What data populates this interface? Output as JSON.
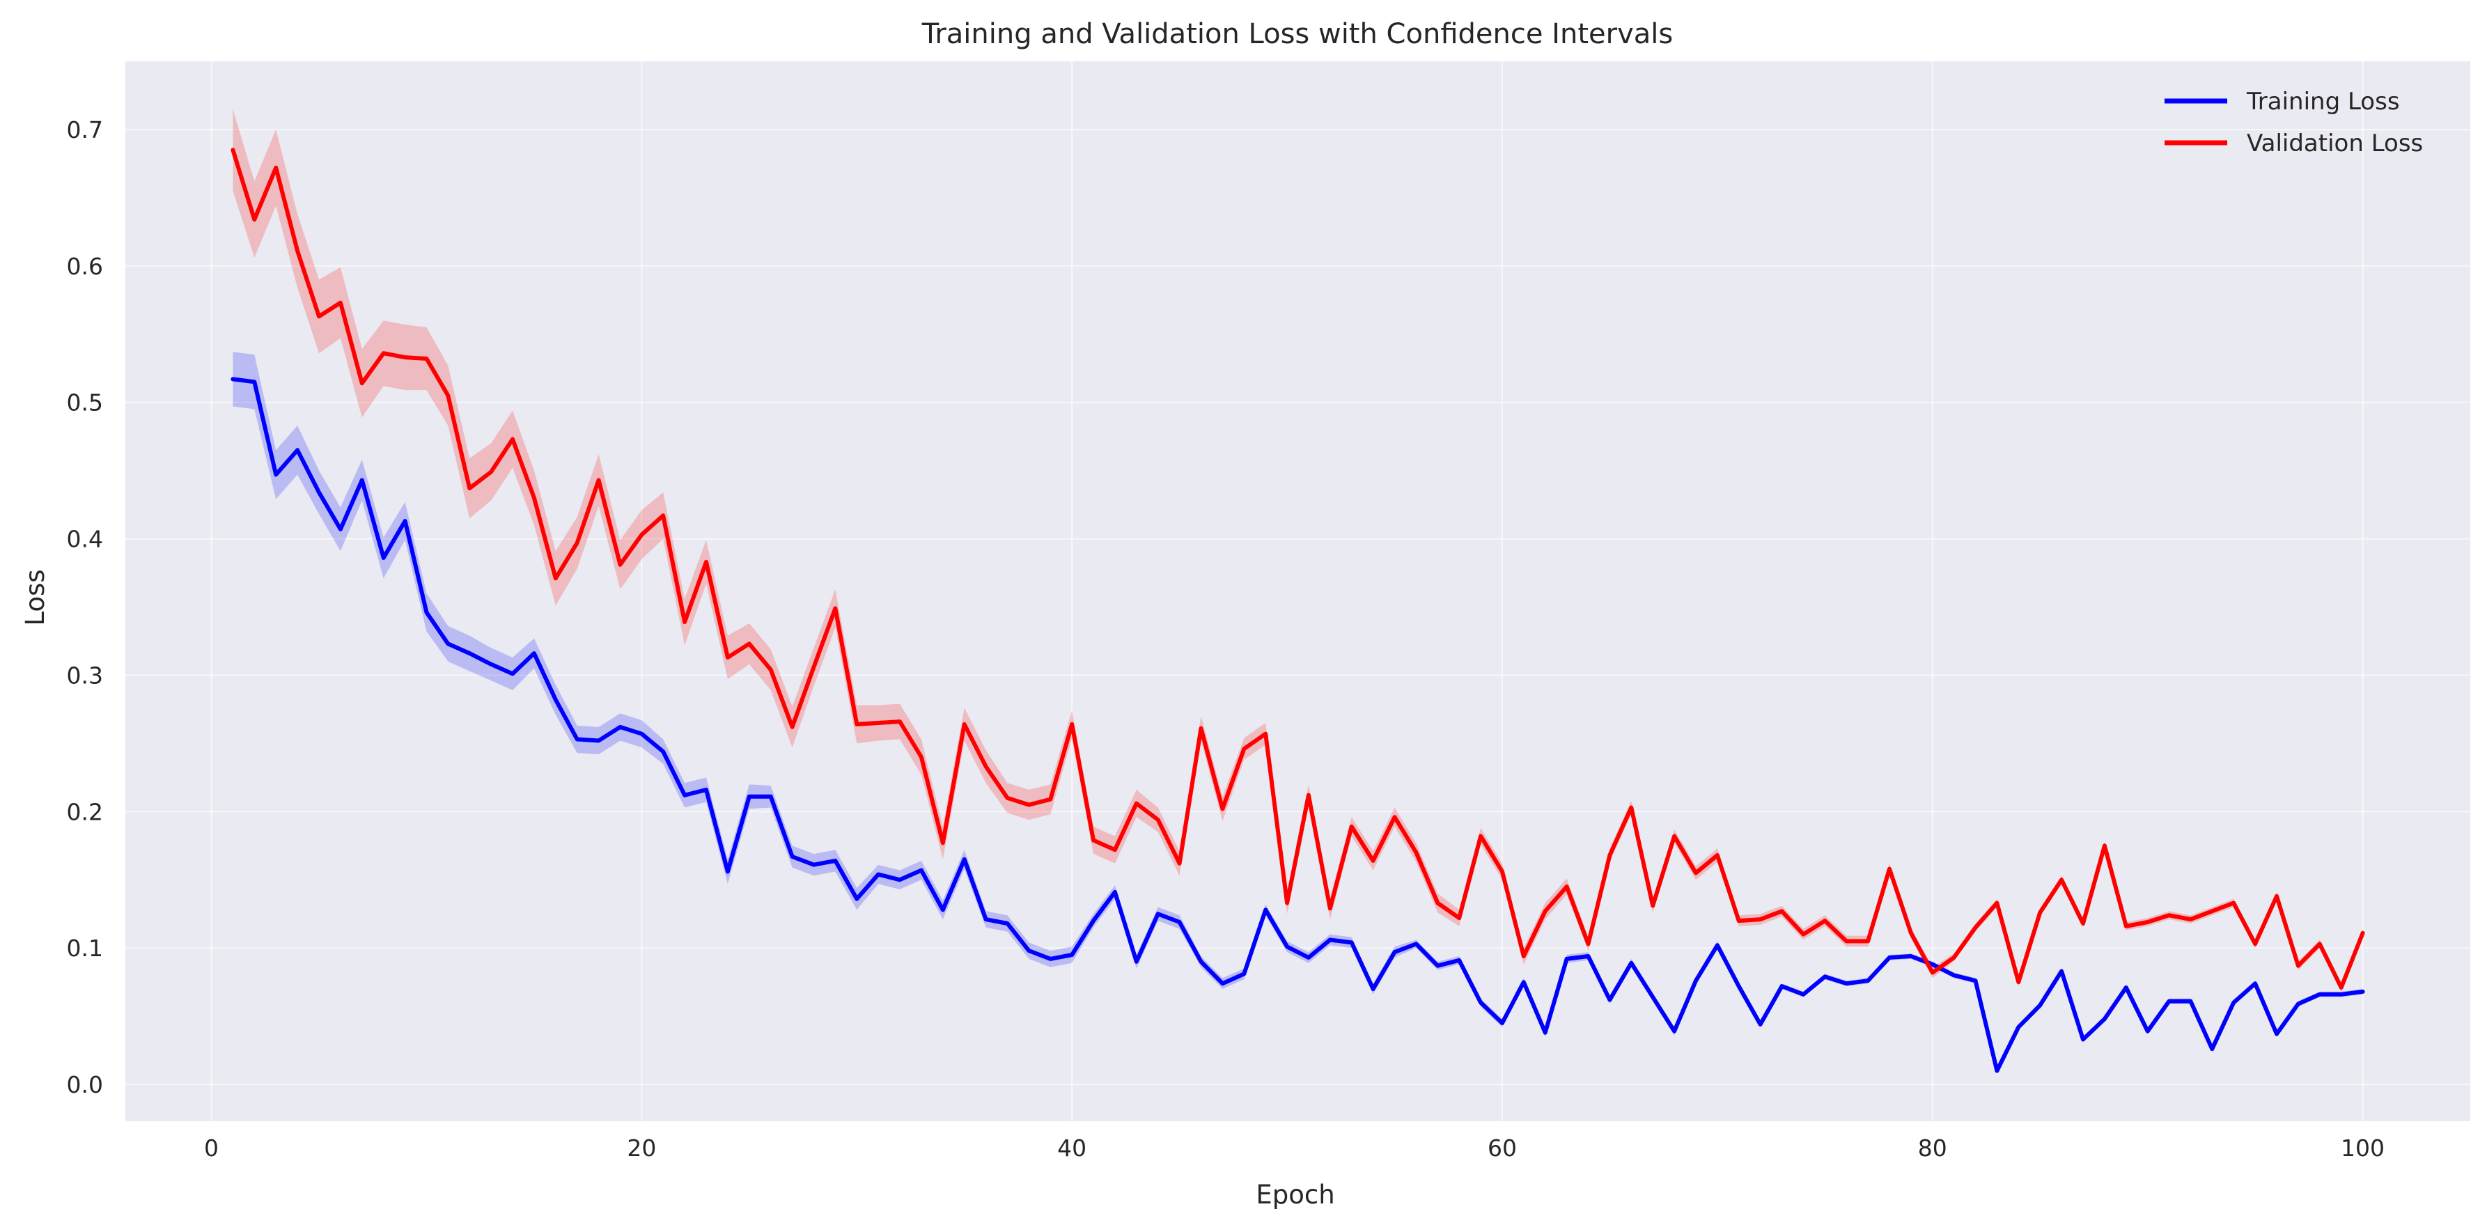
{
  "chart_data": {
    "type": "line",
    "title": "Training and Validation Loss with Confidence Intervals",
    "xlabel": "Epoch",
    "ylabel": "Loss",
    "xlim": [
      -4,
      105
    ],
    "ylim": [
      -0.027,
      0.75
    ],
    "xticks": [
      0,
      20,
      40,
      60,
      80,
      100
    ],
    "yticks": [
      0.0,
      0.1,
      0.2,
      0.3,
      0.4,
      0.5,
      0.6,
      0.7
    ],
    "xtick_labels": [
      "0",
      "20",
      "40",
      "60",
      "80",
      "100"
    ],
    "ytick_labels": [
      "0.0",
      "0.1",
      "0.2",
      "0.3",
      "0.4",
      "0.5",
      "0.6",
      "0.7"
    ],
    "grid": true,
    "legend_position": "top-right",
    "background_color": "#EAEAF2",
    "series": [
      {
        "name": "Training Loss",
        "color": "#0000FF",
        "x": [
          1,
          2,
          3,
          4,
          5,
          6,
          7,
          8,
          9,
          10,
          11,
          12,
          13,
          14,
          15,
          16,
          17,
          18,
          19,
          20,
          21,
          22,
          23,
          24,
          25,
          26,
          27,
          28,
          29,
          30,
          31,
          32,
          33,
          34,
          35,
          36,
          37,
          38,
          39,
          40,
          41,
          42,
          43,
          44,
          45,
          46,
          47,
          48,
          49,
          50,
          51,
          52,
          53,
          54,
          55,
          56,
          57,
          58,
          59,
          60,
          61,
          62,
          63,
          64,
          65,
          66,
          67,
          68,
          69,
          70,
          71,
          72,
          73,
          74,
          75,
          76,
          77,
          78,
          79,
          80,
          81,
          82,
          83,
          84,
          85,
          86,
          87,
          88,
          89,
          90,
          91,
          92,
          93,
          94,
          95,
          96,
          97,
          98,
          99,
          100
        ],
        "values": [
          0.517,
          0.515,
          0.447,
          0.465,
          0.434,
          0.407,
          0.443,
          0.386,
          0.413,
          0.346,
          0.323,
          0.316,
          0.308,
          0.301,
          0.316,
          0.282,
          0.253,
          0.252,
          0.262,
          0.257,
          0.244,
          0.212,
          0.216,
          0.156,
          0.211,
          0.211,
          0.167,
          0.161,
          0.164,
          0.136,
          0.154,
          0.15,
          0.157,
          0.128,
          0.165,
          0.121,
          0.118,
          0.098,
          0.092,
          0.095,
          0.12,
          0.141,
          0.09,
          0.125,
          0.119,
          0.09,
          0.074,
          0.081,
          0.128,
          0.101,
          0.093,
          0.106,
          0.104,
          0.07,
          0.097,
          0.103,
          0.087,
          0.091,
          0.06,
          0.045,
          0.075,
          0.038,
          0.092,
          0.094,
          0.062,
          0.089,
          0.064,
          0.039,
          0.076,
          0.102,
          0.072,
          0.044,
          0.072,
          0.066,
          0.079,
          0.074,
          0.076,
          0.093,
          0.094,
          0.088,
          0.08,
          0.076,
          0.01,
          0.042,
          0.058,
          0.083,
          0.033,
          0.048,
          0.071,
          0.039,
          0.061,
          0.061,
          0.026,
          0.06,
          0.074,
          0.037,
          0.059,
          0.066,
          0.066,
          0.068
        ],
        "ci_halfwidth": [
          0.02,
          0.02,
          0.018,
          0.018,
          0.016,
          0.016,
          0.015,
          0.015,
          0.014,
          0.014,
          0.013,
          0.013,
          0.012,
          0.012,
          0.011,
          0.011,
          0.01,
          0.01,
          0.01,
          0.01,
          0.009,
          0.009,
          0.009,
          0.009,
          0.009,
          0.008,
          0.008,
          0.008,
          0.008,
          0.008,
          0.007,
          0.007,
          0.007,
          0.007,
          0.007,
          0.006,
          0.006,
          0.006,
          0.006,
          0.006,
          0.005,
          0.005,
          0.005,
          0.005,
          0.005,
          0.004,
          0.004,
          0.004,
          0.004,
          0.004,
          0.004,
          0.004,
          0.004,
          0.004,
          0.004,
          0.003,
          0.003,
          0.003,
          0.003,
          0.003,
          0.003,
          0.003,
          0.003,
          0.003,
          0.003,
          0.003,
          0.003,
          0.003,
          0.003,
          0.003,
          0.002,
          0.002,
          0.002,
          0.002,
          0.002,
          0.002,
          0.002,
          0.002,
          0.002,
          0.002,
          0.002,
          0.002,
          0.002,
          0.002,
          0.002,
          0.002,
          0.002,
          0.002,
          0.002,
          0.002,
          0.002,
          0.002,
          0.002,
          0.002,
          0.002,
          0.002,
          0.002,
          0.002,
          0.002,
          0.002
        ]
      },
      {
        "name": "Validation Loss",
        "color": "#FF0000",
        "x": [
          1,
          2,
          3,
          4,
          5,
          6,
          7,
          8,
          9,
          10,
          11,
          12,
          13,
          14,
          15,
          16,
          17,
          18,
          19,
          20,
          21,
          22,
          23,
          24,
          25,
          26,
          27,
          28,
          29,
          30,
          31,
          32,
          33,
          34,
          35,
          36,
          37,
          38,
          39,
          40,
          41,
          42,
          43,
          44,
          45,
          46,
          47,
          48,
          49,
          50,
          51,
          52,
          53,
          54,
          55,
          56,
          57,
          58,
          59,
          60,
          61,
          62,
          63,
          64,
          65,
          66,
          67,
          68,
          69,
          70,
          71,
          72,
          73,
          74,
          75,
          76,
          77,
          78,
          79,
          80,
          81,
          82,
          83,
          84,
          85,
          86,
          87,
          88,
          89,
          90,
          91,
          92,
          93,
          94,
          95,
          96,
          97,
          98,
          99,
          100
        ],
        "values": [
          0.685,
          0.634,
          0.672,
          0.611,
          0.563,
          0.573,
          0.514,
          0.536,
          0.533,
          0.532,
          0.505,
          0.437,
          0.449,
          0.473,
          0.43,
          0.371,
          0.397,
          0.443,
          0.381,
          0.403,
          0.417,
          0.339,
          0.383,
          0.313,
          0.323,
          0.304,
          0.262,
          0.306,
          0.349,
          0.264,
          0.265,
          0.266,
          0.24,
          0.177,
          0.264,
          0.233,
          0.21,
          0.205,
          0.209,
          0.264,
          0.179,
          0.172,
          0.206,
          0.194,
          0.162,
          0.261,
          0.202,
          0.246,
          0.257,
          0.133,
          0.212,
          0.129,
          0.189,
          0.164,
          0.196,
          0.17,
          0.133,
          0.122,
          0.182,
          0.156,
          0.094,
          0.127,
          0.145,
          0.103,
          0.168,
          0.203,
          0.131,
          0.182,
          0.155,
          0.168,
          0.12,
          0.121,
          0.127,
          0.11,
          0.12,
          0.105,
          0.105,
          0.158,
          0.111,
          0.082,
          0.093,
          0.115,
          0.133,
          0.075,
          0.126,
          0.15,
          0.118,
          0.175,
          0.116,
          0.119,
          0.124,
          0.121,
          0.127,
          0.133,
          0.103,
          0.138,
          0.087,
          0.103,
          0.071,
          0.111
        ],
        "ci_halfwidth": [
          0.03,
          0.028,
          0.028,
          0.027,
          0.027,
          0.026,
          0.025,
          0.024,
          0.024,
          0.023,
          0.022,
          0.022,
          0.021,
          0.021,
          0.02,
          0.02,
          0.019,
          0.019,
          0.018,
          0.018,
          0.017,
          0.017,
          0.016,
          0.016,
          0.015,
          0.015,
          0.015,
          0.014,
          0.014,
          0.014,
          0.013,
          0.013,
          0.013,
          0.012,
          0.012,
          0.012,
          0.011,
          0.011,
          0.011,
          0.01,
          0.01,
          0.01,
          0.01,
          0.009,
          0.009,
          0.009,
          0.009,
          0.008,
          0.008,
          0.008,
          0.008,
          0.008,
          0.007,
          0.007,
          0.007,
          0.007,
          0.007,
          0.006,
          0.006,
          0.006,
          0.006,
          0.006,
          0.006,
          0.005,
          0.005,
          0.005,
          0.005,
          0.005,
          0.005,
          0.005,
          0.004,
          0.004,
          0.004,
          0.004,
          0.004,
          0.004,
          0.004,
          0.004,
          0.004,
          0.004,
          0.003,
          0.003,
          0.003,
          0.003,
          0.003,
          0.003,
          0.003,
          0.003,
          0.003,
          0.003,
          0.003,
          0.003,
          0.003,
          0.003,
          0.003,
          0.003,
          0.003,
          0.003,
          0.003,
          0.003
        ]
      }
    ]
  }
}
